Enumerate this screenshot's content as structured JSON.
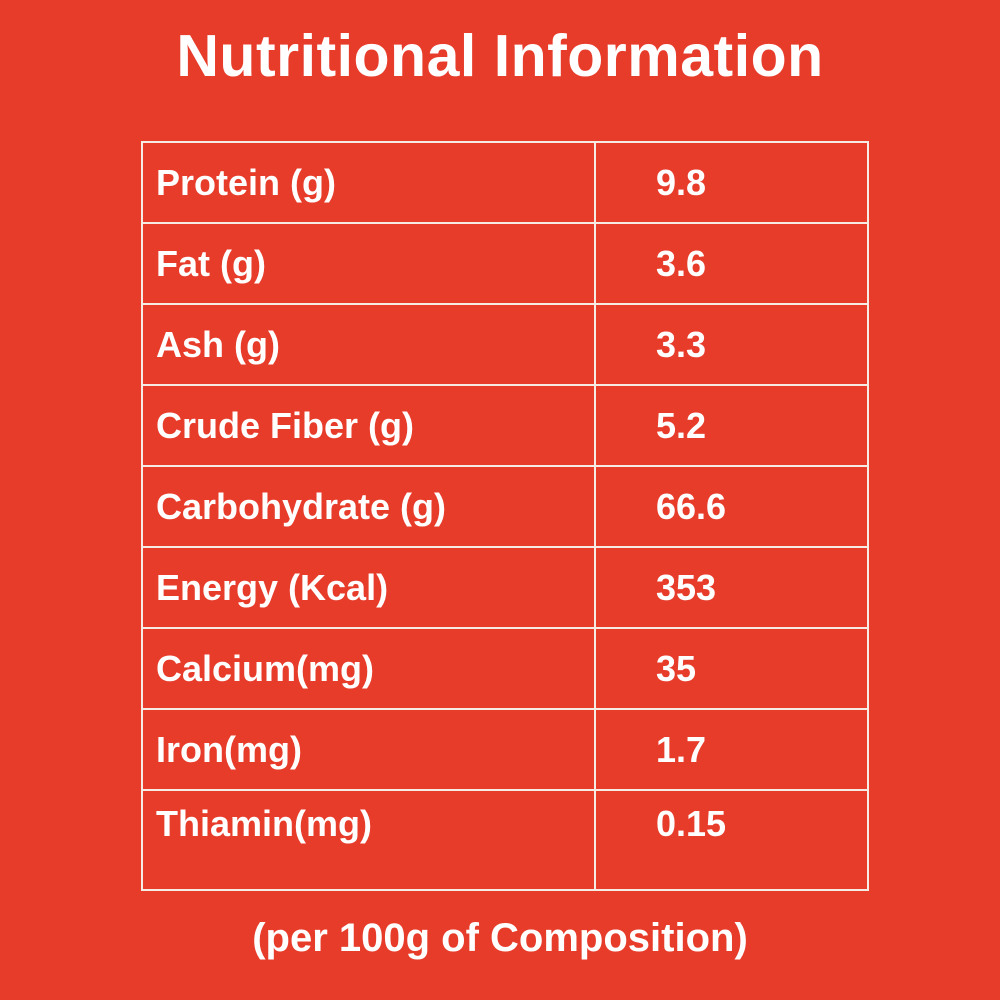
{
  "title": "Nutritional Information",
  "footer": "(per 100g of Composition)",
  "colors": {
    "background": "#E83C2B",
    "table_border": "#F6ECE3",
    "text": "#FFFFFF"
  },
  "chart_data": {
    "type": "table",
    "title": "Nutritional Information",
    "note": "(per 100g of Composition)",
    "rows": [
      [
        "Protein (g)",
        "9.8"
      ],
      [
        "Fat (g)",
        "3.6"
      ],
      [
        "Ash (g)",
        "3.3"
      ],
      [
        "Crude Fiber (g)",
        "5.2"
      ],
      [
        "Carbohydrate (g)",
        "66.6"
      ],
      [
        "Energy (Kcal)",
        "353"
      ],
      [
        "Calcium(mg)",
        "35"
      ],
      [
        "Iron(mg)",
        "1.7"
      ],
      [
        "Thiamin(mg)",
        "0.15"
      ]
    ]
  }
}
